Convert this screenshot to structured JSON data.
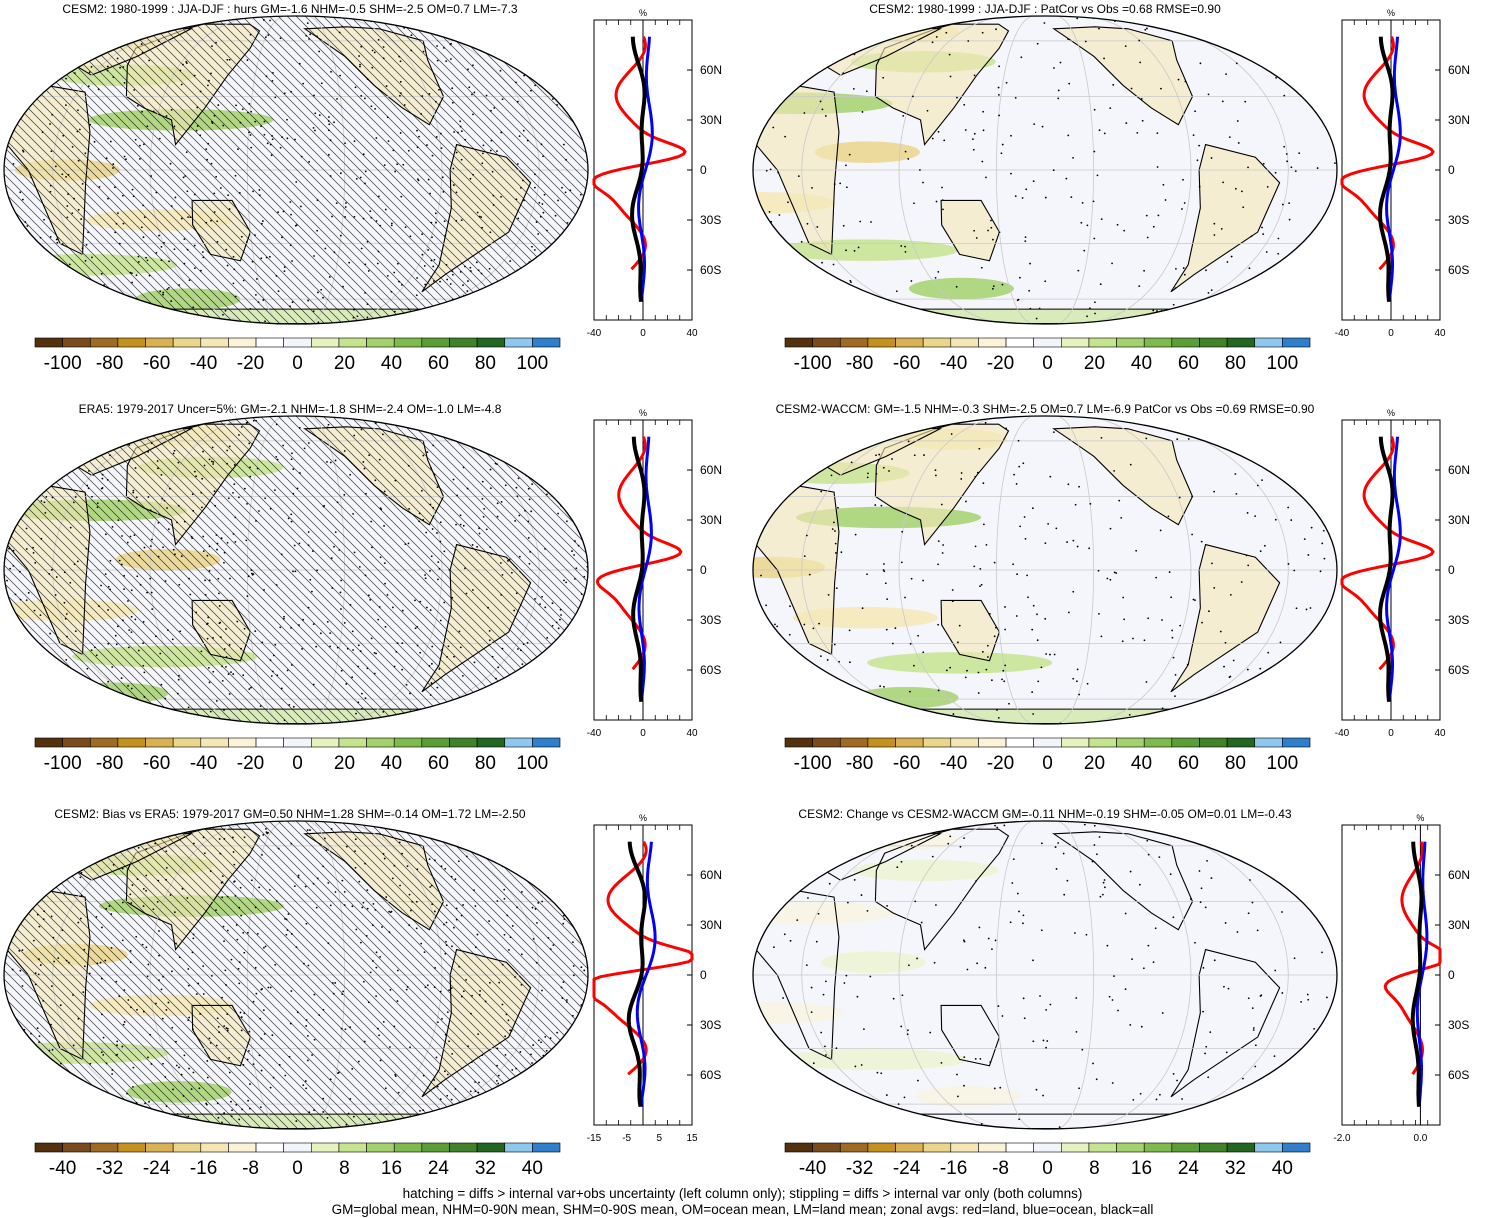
{
  "panels": [
    {
      "title": "CESM2: 1980-1999 : JJA-DJF : hurs GM=-1.6 NHM=-0.5 SHM=-2.5 OM=0.7 LM=-7.3",
      "hatching": true,
      "zonal": {
        "xlim": [
          -40,
          40
        ],
        "xticks": [
          "-40",
          "0",
          "40"
        ],
        "unit": "%",
        "amp": 1.0,
        "redShift": 0.0
      },
      "colorbar": [
        "-100",
        "-80",
        "-60",
        "-40",
        "-20",
        "0",
        "20",
        "40",
        "60",
        "80",
        "100"
      ]
    },
    {
      "title": "CESM2: 1980-1999 : JJA-DJF : PatCor vs Obs =0.68 RMSE=0.90",
      "hatching": false,
      "zonal": {
        "xlim": [
          -40,
          40
        ],
        "xticks": [
          "-40",
          "0",
          "40"
        ],
        "unit": "%",
        "amp": 1.0,
        "redShift": 0.0
      },
      "colorbar": [
        "-100",
        "-80",
        "-60",
        "-40",
        "-20",
        "0",
        "20",
        "40",
        "60",
        "80",
        "100"
      ]
    },
    {
      "title": "ERA5: 1979-2017 Uncer=5%: GM=-2.1 NHM=-1.8 SHM=-2.4 OM=-1.0 LM=-4.8",
      "hatching": true,
      "zonal": {
        "xlim": [
          -40,
          40
        ],
        "xticks": [
          "-40",
          "0",
          "40"
        ],
        "unit": "%",
        "amp": 0.9,
        "redShift": 0.0
      },
      "colorbar": [
        "-100",
        "-80",
        "-60",
        "-40",
        "-20",
        "0",
        "20",
        "40",
        "60",
        "80",
        "100"
      ]
    },
    {
      "title": "CESM2-WACCM: GM=-1.5 NHM=-0.3 SHM=-2.5 OM=0.7 LM=-6.9 PatCor vs Obs =0.69 RMSE=0.90",
      "hatching": false,
      "zonal": {
        "xlim": [
          -40,
          40
        ],
        "xticks": [
          "-40",
          "0",
          "40"
        ],
        "unit": "%",
        "amp": 1.0,
        "redShift": 0.0
      },
      "colorbar": [
        "-100",
        "-80",
        "-60",
        "-40",
        "-20",
        "0",
        "20",
        "40",
        "60",
        "80",
        "100"
      ]
    },
    {
      "title": "CESM2: Bias vs ERA5: 1979-2017 GM=0.50 NHM=1.28 SHM=-0.14 OM=1.72 LM=-2.50",
      "hatching": true,
      "zonal": {
        "xlim": [
          -15,
          15
        ],
        "xticks": [
          "-15",
          "-5",
          "5",
          "15"
        ],
        "unit": "%",
        "amp": 1.3,
        "redShift": 0.0
      },
      "colorbar": [
        "-40",
        "-32",
        "-24",
        "-16",
        "-8",
        "0",
        "8",
        "16",
        "24",
        "32",
        "40"
      ]
    },
    {
      "title": "CESM2: Change vs CESM2-WACCM GM=-0.11 NHM=-0.19 SHM=-0.05 OM=0.01 LM=-0.43",
      "hatching": false,
      "zonal": {
        "xlim": [
          -2.0,
          0.5
        ],
        "xticks": [
          "-2.0",
          "0.0"
        ],
        "unit": "%",
        "amp": 0.7,
        "redShift": 0.3
      },
      "colorbar": [
        "-40",
        "-32",
        "-24",
        "-16",
        "-8",
        "0",
        "8",
        "16",
        "24",
        "32",
        "40"
      ]
    }
  ],
  "lat_labels": [
    "60N",
    "30N",
    "0",
    "30S",
    "60S"
  ],
  "colors": {
    "colorbar": [
      "#54300b",
      "#7a4b1c",
      "#9f6a21",
      "#c5911e",
      "#d9b153",
      "#ead58b",
      "#f4e7b5",
      "#faf3d8",
      "#ffffff",
      "#f2f5fb",
      "#e7f3bf",
      "#c5e48f",
      "#a3d16c",
      "#7fbb4c",
      "#5c9e36",
      "#3f8227",
      "#236621",
      "#8fc8ee",
      "#2f7fcc"
    ],
    "land_red": "#ff0000",
    "ocean_blue": "#0000ff",
    "all_black": "#000000",
    "ocean_bg": "#f5f6fb"
  },
  "footer": {
    "line1": "hatching = diffs > internal var+obs uncertainty (left column only); stippling = diffs > internal var only (both columns)",
    "line2": "GM=global mean, NHM=0-90N mean, SHM=0-90S mean, OM=ocean mean, LM=land mean; zonal avgs: red=land, blue=ocean, black=all"
  }
}
